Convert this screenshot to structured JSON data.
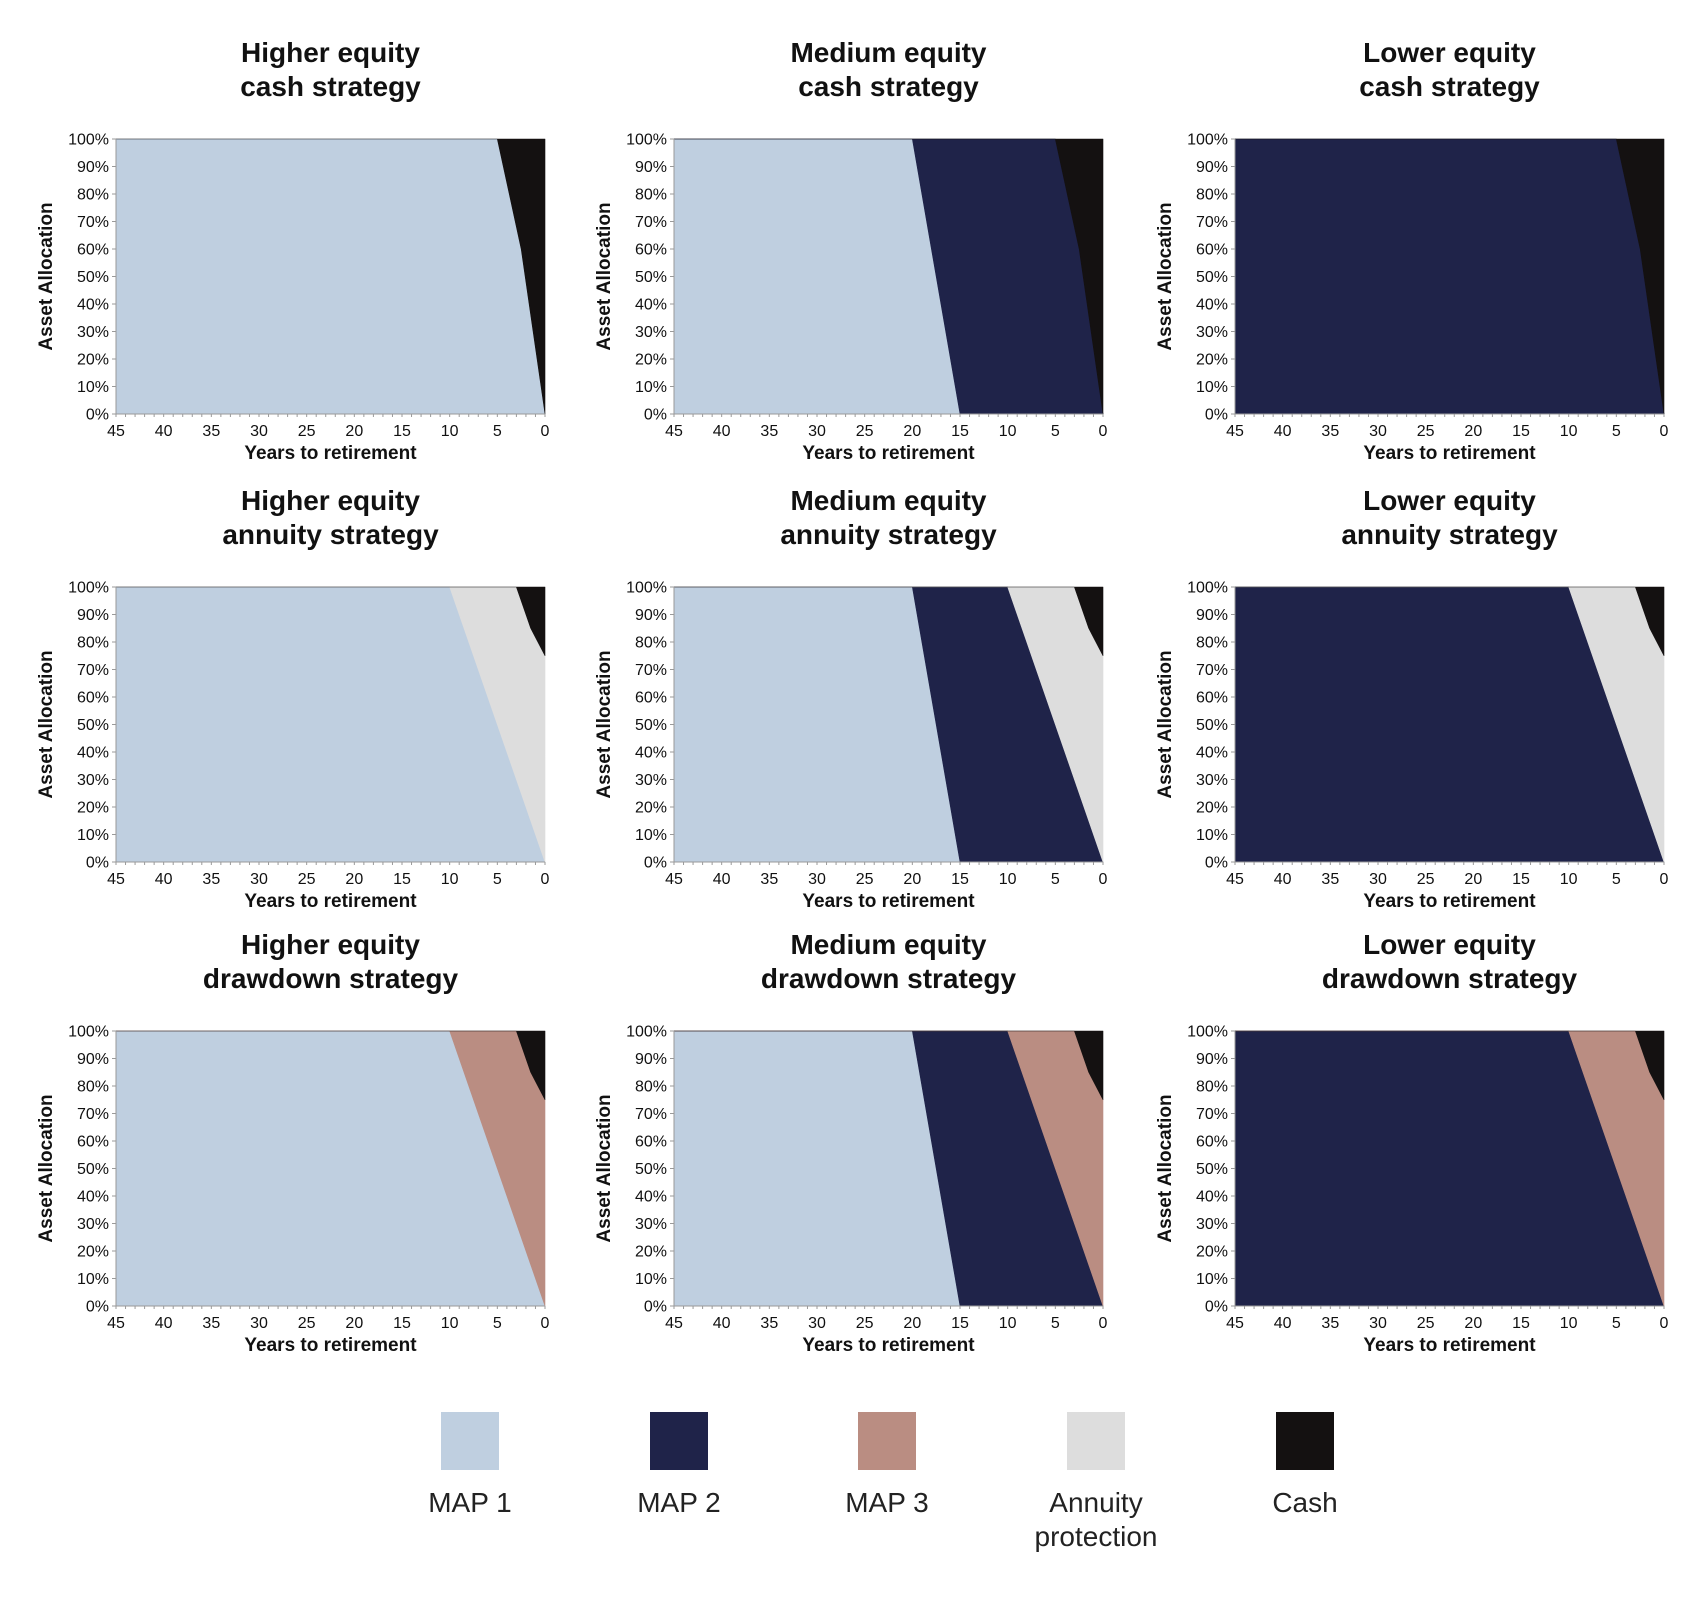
{
  "legend": [
    {
      "key": "map1",
      "label": "MAP 1",
      "color": "#bfcfe0"
    },
    {
      "key": "map2",
      "label": "MAP 2",
      "color": "#1f2349"
    },
    {
      "key": "map3",
      "label": "MAP 3",
      "color": "#ba8d82"
    },
    {
      "key": "annuity",
      "label": "Annuity protection",
      "label_lines": [
        "Annuity",
        "protection"
      ],
      "color": "#dddddd"
    },
    {
      "key": "cash",
      "label": "Cash",
      "color": "#141111"
    }
  ],
  "chart_data": [
    {
      "type": "area",
      "title": "Higher equity cash strategy",
      "title_lines": [
        "Higher equity",
        "cash strategy"
      ],
      "xlabel": "Years to retirement",
      "ylabel": "Asset Allocation",
      "x_ticks": [
        "45",
        "40",
        "35",
        "30",
        "25",
        "20",
        "15",
        "10",
        "5",
        "0"
      ],
      "y_ticks": [
        "0%",
        "10%",
        "20%",
        "30%",
        "40%",
        "50%",
        "60%",
        "70%",
        "80%",
        "90%",
        "100%"
      ],
      "xlim": [
        45,
        0
      ],
      "ylim": [
        0,
        100
      ],
      "grid": false,
      "x": [
        45,
        40,
        35,
        30,
        25,
        20,
        15,
        10,
        5,
        2.5,
        0
      ],
      "series": [
        {
          "name": "MAP 1",
          "key": "map1",
          "values": [
            100,
            100,
            100,
            100,
            100,
            100,
            100,
            100,
            100,
            60,
            0
          ]
        },
        {
          "name": "Cash",
          "key": "cash",
          "values": [
            0,
            0,
            0,
            0,
            0,
            0,
            0,
            0,
            0,
            40,
            100
          ]
        }
      ]
    },
    {
      "type": "area",
      "title": "Medium equity cash strategy",
      "title_lines": [
        "Medium equity",
        "cash strategy"
      ],
      "xlabel": "Years to retirement",
      "ylabel": "Asset Allocation",
      "x_ticks": [
        "45",
        "40",
        "35",
        "30",
        "25",
        "20",
        "15",
        "10",
        "5",
        "0"
      ],
      "y_ticks": [
        "0%",
        "10%",
        "20%",
        "30%",
        "40%",
        "50%",
        "60%",
        "70%",
        "80%",
        "90%",
        "100%"
      ],
      "xlim": [
        45,
        0
      ],
      "ylim": [
        0,
        100
      ],
      "grid": false,
      "x": [
        45,
        40,
        35,
        30,
        25,
        20,
        15,
        10,
        5,
        2.5,
        0
      ],
      "series": [
        {
          "name": "MAP 1",
          "key": "map1",
          "values": [
            100,
            100,
            100,
            100,
            100,
            100,
            0,
            0,
            0,
            0,
            0
          ]
        },
        {
          "name": "MAP 2",
          "key": "map2",
          "values": [
            0,
            0,
            0,
            0,
            0,
            0,
            100,
            100,
            100,
            60,
            0
          ]
        },
        {
          "name": "Cash",
          "key": "cash",
          "values": [
            0,
            0,
            0,
            0,
            0,
            0,
            0,
            0,
            0,
            40,
            100
          ]
        }
      ]
    },
    {
      "type": "area",
      "title": "Lower equity cash strategy",
      "title_lines": [
        "Lower equity",
        "cash strategy"
      ],
      "xlabel": "Years to retirement",
      "ylabel": "Asset Allocation",
      "x_ticks": [
        "45",
        "40",
        "35",
        "30",
        "25",
        "20",
        "15",
        "10",
        "5",
        "0"
      ],
      "y_ticks": [
        "0%",
        "10%",
        "20%",
        "30%",
        "40%",
        "50%",
        "60%",
        "70%",
        "80%",
        "90%",
        "100%"
      ],
      "xlim": [
        45,
        0
      ],
      "ylim": [
        0,
        100
      ],
      "grid": false,
      "x": [
        45,
        40,
        35,
        30,
        25,
        20,
        15,
        10,
        5,
        2.5,
        0
      ],
      "series": [
        {
          "name": "MAP 2",
          "key": "map2",
          "values": [
            100,
            100,
            100,
            100,
            100,
            100,
            100,
            100,
            100,
            60,
            0
          ]
        },
        {
          "name": "Cash",
          "key": "cash",
          "values": [
            0,
            0,
            0,
            0,
            0,
            0,
            0,
            0,
            0,
            40,
            100
          ]
        }
      ]
    },
    {
      "type": "area",
      "title": "Higher equity annuity strategy",
      "title_lines": [
        "Higher equity",
        "annuity strategy"
      ],
      "xlabel": "Years to retirement",
      "ylabel": "Asset Allocation",
      "x_ticks": [
        "45",
        "40",
        "35",
        "30",
        "25",
        "20",
        "15",
        "10",
        "5",
        "0"
      ],
      "y_ticks": [
        "0%",
        "10%",
        "20%",
        "30%",
        "40%",
        "50%",
        "60%",
        "70%",
        "80%",
        "90%",
        "100%"
      ],
      "xlim": [
        45,
        0
      ],
      "ylim": [
        0,
        100
      ],
      "grid": false,
      "x": [
        45,
        40,
        35,
        30,
        25,
        20,
        15,
        10,
        5,
        3,
        1.5,
        0
      ],
      "series": [
        {
          "name": "MAP 1",
          "key": "map1",
          "values": [
            100,
            100,
            100,
            100,
            100,
            100,
            100,
            100,
            50,
            30,
            15,
            0
          ]
        },
        {
          "name": "Annuity protection",
          "key": "annuity",
          "values": [
            0,
            0,
            0,
            0,
            0,
            0,
            0,
            0,
            50,
            70,
            70,
            75
          ]
        },
        {
          "name": "Cash",
          "key": "cash",
          "values": [
            0,
            0,
            0,
            0,
            0,
            0,
            0,
            0,
            0,
            0,
            15,
            25
          ]
        }
      ]
    },
    {
      "type": "area",
      "title": "Medium equity annuity strategy",
      "title_lines": [
        "Medium equity",
        "annuity strategy"
      ],
      "xlabel": "Years to retirement",
      "ylabel": "Asset Allocation",
      "x_ticks": [
        "45",
        "40",
        "35",
        "30",
        "25",
        "20",
        "15",
        "10",
        "5",
        "0"
      ],
      "y_ticks": [
        "0%",
        "10%",
        "20%",
        "30%",
        "40%",
        "50%",
        "60%",
        "70%",
        "80%",
        "90%",
        "100%"
      ],
      "xlim": [
        45,
        0
      ],
      "ylim": [
        0,
        100
      ],
      "grid": false,
      "x": [
        45,
        40,
        35,
        30,
        25,
        20,
        15,
        10,
        5,
        3,
        1.5,
        0
      ],
      "series": [
        {
          "name": "MAP 1",
          "key": "map1",
          "values": [
            100,
            100,
            100,
            100,
            100,
            100,
            0,
            0,
            0,
            0,
            0,
            0
          ]
        },
        {
          "name": "MAP 2",
          "key": "map2",
          "values": [
            0,
            0,
            0,
            0,
            0,
            0,
            100,
            100,
            50,
            30,
            15,
            0
          ]
        },
        {
          "name": "Annuity protection",
          "key": "annuity",
          "values": [
            0,
            0,
            0,
            0,
            0,
            0,
            0,
            0,
            50,
            70,
            70,
            75
          ]
        },
        {
          "name": "Cash",
          "key": "cash",
          "values": [
            0,
            0,
            0,
            0,
            0,
            0,
            0,
            0,
            0,
            0,
            15,
            25
          ]
        }
      ]
    },
    {
      "type": "area",
      "title": "Lower equity annuity strategy",
      "title_lines": [
        "Lower equity",
        "annuity strategy"
      ],
      "xlabel": "Years to retirement",
      "ylabel": "Asset Allocation",
      "x_ticks": [
        "45",
        "40",
        "35",
        "30",
        "25",
        "20",
        "15",
        "10",
        "5",
        "0"
      ],
      "y_ticks": [
        "0%",
        "10%",
        "20%",
        "30%",
        "40%",
        "50%",
        "60%",
        "70%",
        "80%",
        "90%",
        "100%"
      ],
      "xlim": [
        45,
        0
      ],
      "ylim": [
        0,
        100
      ],
      "grid": false,
      "x": [
        45,
        40,
        35,
        30,
        25,
        20,
        15,
        10,
        5,
        3,
        1.5,
        0
      ],
      "series": [
        {
          "name": "MAP 2",
          "key": "map2",
          "values": [
            100,
            100,
            100,
            100,
            100,
            100,
            100,
            100,
            50,
            30,
            15,
            0
          ]
        },
        {
          "name": "Annuity protection",
          "key": "annuity",
          "values": [
            0,
            0,
            0,
            0,
            0,
            0,
            0,
            0,
            50,
            70,
            70,
            75
          ]
        },
        {
          "name": "Cash",
          "key": "cash",
          "values": [
            0,
            0,
            0,
            0,
            0,
            0,
            0,
            0,
            0,
            0,
            15,
            25
          ]
        }
      ]
    },
    {
      "type": "area",
      "title": "Higher equity drawdown strategy",
      "title_lines": [
        "Higher equity",
        "drawdown strategy"
      ],
      "xlabel": "Years to retirement",
      "ylabel": "Asset Allocation",
      "x_ticks": [
        "45",
        "40",
        "35",
        "30",
        "25",
        "20",
        "15",
        "10",
        "5",
        "0"
      ],
      "y_ticks": [
        "0%",
        "10%",
        "20%",
        "30%",
        "40%",
        "50%",
        "60%",
        "70%",
        "80%",
        "90%",
        "100%"
      ],
      "xlim": [
        45,
        0
      ],
      "ylim": [
        0,
        100
      ],
      "grid": false,
      "x": [
        45,
        40,
        35,
        30,
        25,
        20,
        15,
        10,
        5,
        3,
        1.5,
        0
      ],
      "series": [
        {
          "name": "MAP 1",
          "key": "map1",
          "values": [
            100,
            100,
            100,
            100,
            100,
            100,
            100,
            100,
            50,
            30,
            15,
            0
          ]
        },
        {
          "name": "MAP 3",
          "key": "map3",
          "values": [
            0,
            0,
            0,
            0,
            0,
            0,
            0,
            0,
            50,
            70,
            70,
            75
          ]
        },
        {
          "name": "Cash",
          "key": "cash",
          "values": [
            0,
            0,
            0,
            0,
            0,
            0,
            0,
            0,
            0,
            0,
            15,
            25
          ]
        }
      ]
    },
    {
      "type": "area",
      "title": "Medium equity drawdown strategy",
      "title_lines": [
        "Medium equity",
        "drawdown strategy"
      ],
      "xlabel": "Years to retirement",
      "ylabel": "Asset Allocation",
      "x_ticks": [
        "45",
        "40",
        "35",
        "30",
        "25",
        "20",
        "15",
        "10",
        "5",
        "0"
      ],
      "y_ticks": [
        "0%",
        "10%",
        "20%",
        "30%",
        "40%",
        "50%",
        "60%",
        "70%",
        "80%",
        "90%",
        "100%"
      ],
      "xlim": [
        45,
        0
      ],
      "ylim": [
        0,
        100
      ],
      "grid": false,
      "x": [
        45,
        40,
        35,
        30,
        25,
        20,
        15,
        10,
        5,
        3,
        1.5,
        0
      ],
      "series": [
        {
          "name": "MAP 1",
          "key": "map1",
          "values": [
            100,
            100,
            100,
            100,
            100,
            100,
            0,
            0,
            0,
            0,
            0,
            0
          ]
        },
        {
          "name": "MAP 2",
          "key": "map2",
          "values": [
            0,
            0,
            0,
            0,
            0,
            0,
            100,
            100,
            50,
            30,
            15,
            0
          ]
        },
        {
          "name": "MAP 3",
          "key": "map3",
          "values": [
            0,
            0,
            0,
            0,
            0,
            0,
            0,
            0,
            50,
            70,
            70,
            75
          ]
        },
        {
          "name": "Cash",
          "key": "cash",
          "values": [
            0,
            0,
            0,
            0,
            0,
            0,
            0,
            0,
            0,
            0,
            15,
            25
          ]
        }
      ]
    },
    {
      "type": "area",
      "title": "Lower equity drawdown strategy",
      "title_lines": [
        "Lower equity",
        "drawdown strategy"
      ],
      "xlabel": "Years to retirement",
      "ylabel": "Asset Allocation",
      "x_ticks": [
        "45",
        "40",
        "35",
        "30",
        "25",
        "20",
        "15",
        "10",
        "5",
        "0"
      ],
      "y_ticks": [
        "0%",
        "10%",
        "20%",
        "30%",
        "40%",
        "50%",
        "60%",
        "70%",
        "80%",
        "90%",
        "100%"
      ],
      "xlim": [
        45,
        0
      ],
      "ylim": [
        0,
        100
      ],
      "grid": false,
      "x": [
        45,
        40,
        35,
        30,
        25,
        20,
        15,
        10,
        5,
        3,
        1.5,
        0
      ],
      "series": [
        {
          "name": "MAP 2",
          "key": "map2",
          "values": [
            100,
            100,
            100,
            100,
            100,
            100,
            100,
            100,
            50,
            30,
            15,
            0
          ]
        },
        {
          "name": "MAP 3",
          "key": "map3",
          "values": [
            0,
            0,
            0,
            0,
            0,
            0,
            0,
            0,
            50,
            70,
            70,
            75
          ]
        },
        {
          "name": "Cash",
          "key": "cash",
          "values": [
            0,
            0,
            0,
            0,
            0,
            0,
            0,
            0,
            0,
            0,
            15,
            25
          ]
        }
      ]
    }
  ]
}
